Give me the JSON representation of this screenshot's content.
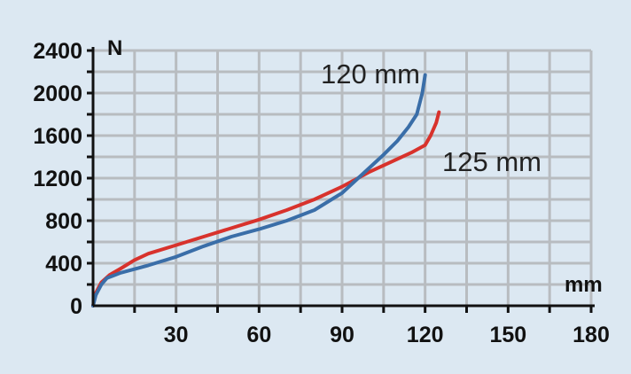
{
  "chart_data": {
    "type": "line",
    "xlabel": "mm",
    "ylabel": "N",
    "xlim": [
      0,
      180
    ],
    "ylim": [
      0,
      2400
    ],
    "x_ticks": [
      {
        "value": 30,
        "label": "30"
      },
      {
        "value": 60,
        "label": "60"
      },
      {
        "value": 90,
        "label": "90"
      },
      {
        "value": 120,
        "label": "120"
      },
      {
        "value": 150,
        "label": "150"
      },
      {
        "value": 180,
        "label": "180"
      }
    ],
    "y_ticks": [
      {
        "value": 0,
        "label": "0"
      },
      {
        "value": 400,
        "label": "400"
      },
      {
        "value": 800,
        "label": "800"
      },
      {
        "value": 1200,
        "label": "1200"
      },
      {
        "value": 1600,
        "label": "1600"
      },
      {
        "value": 2000,
        "label": "2000"
      },
      {
        "value": 2400,
        "label": "2400"
      }
    ],
    "grid": true,
    "series": [
      {
        "name": "120 mm",
        "color": "#3a6ea8",
        "points": [
          [
            0,
            0
          ],
          [
            1,
            100
          ],
          [
            3,
            200
          ],
          [
            5,
            260
          ],
          [
            10,
            310
          ],
          [
            20,
            380
          ],
          [
            30,
            460
          ],
          [
            40,
            560
          ],
          [
            50,
            650
          ],
          [
            60,
            720
          ],
          [
            70,
            800
          ],
          [
            80,
            900
          ],
          [
            90,
            1060
          ],
          [
            95,
            1180
          ],
          [
            100,
            1300
          ],
          [
            105,
            1420
          ],
          [
            110,
            1550
          ],
          [
            114,
            1680
          ],
          [
            117,
            1800
          ],
          [
            119,
            2000
          ],
          [
            120,
            2170
          ]
        ]
      },
      {
        "name": "125 mm",
        "color": "#d8322c",
        "points": [
          [
            0,
            0
          ],
          [
            1,
            120
          ],
          [
            3,
            220
          ],
          [
            6,
            290
          ],
          [
            10,
            350
          ],
          [
            15,
            430
          ],
          [
            20,
            490
          ],
          [
            30,
            570
          ],
          [
            40,
            650
          ],
          [
            50,
            730
          ],
          [
            60,
            810
          ],
          [
            70,
            900
          ],
          [
            80,
            1000
          ],
          [
            90,
            1120
          ],
          [
            95,
            1190
          ],
          [
            100,
            1260
          ],
          [
            110,
            1380
          ],
          [
            115,
            1440
          ],
          [
            120,
            1510
          ],
          [
            122,
            1600
          ],
          [
            124,
            1720
          ],
          [
            125,
            1820
          ]
        ]
      }
    ]
  }
}
